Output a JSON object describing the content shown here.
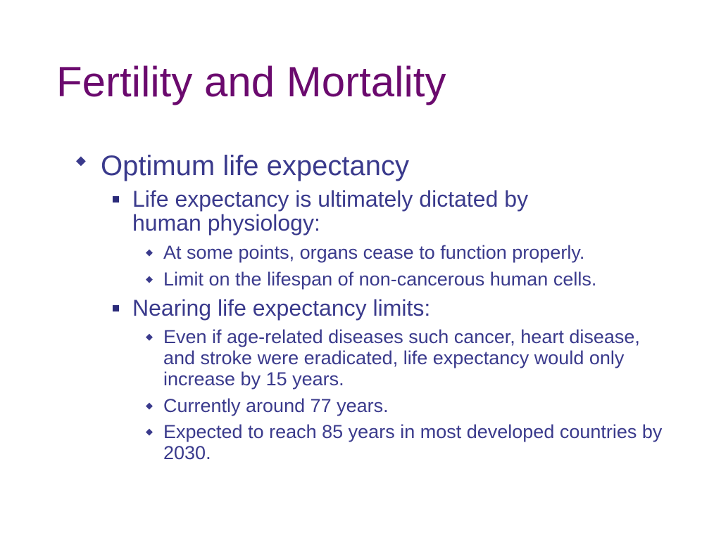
{
  "slide": {
    "title": "Fertility and Mortality",
    "colors": {
      "title": "#6b0a6e",
      "body": "#3a3a8c",
      "bullet_square": "#2b2b7a",
      "background": "#ffffff"
    },
    "bullet_icons": {
      "level1": "diamond-icon",
      "level2": "square-icon",
      "level3": "diamond-icon"
    },
    "outline": [
      {
        "text": "Optimum life expectancy",
        "children": [
          {
            "text": "Life expectancy is ultimately dictated by human physiology:",
            "children": [
              {
                "text": "At some points, organs cease to function properly."
              },
              {
                "text": "Limit on the lifespan of non-cancerous human cells."
              }
            ]
          },
          {
            "text": "Nearing life expectancy limits:",
            "children": [
              {
                "text": "Even if age-related diseases such cancer, heart disease, and stroke were eradicated, life expectancy would only increase by 15 years."
              },
              {
                "text": "Currently around 77 years."
              },
              {
                "text": "Expected to reach 85 years in most developed countries by 2030."
              }
            ]
          }
        ]
      }
    ]
  }
}
